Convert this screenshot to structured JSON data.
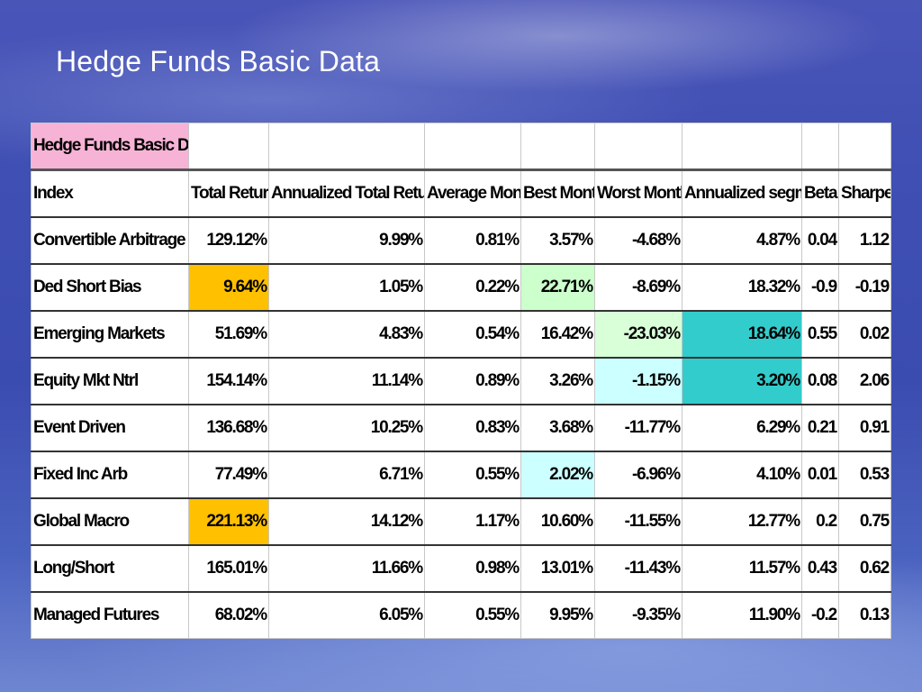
{
  "slide": {
    "title": "Hedge Funds Basic Data"
  },
  "table": {
    "tag": "Hedge Funds Basic Data",
    "headers": [
      "Index",
      "Total Return",
      "Annualized Total Return",
      "Average Month",
      "Best Month",
      "Worst Month",
      "Annualized segma",
      "Beta",
      "Sharpe"
    ],
    "rows": [
      [
        "Convertible Arbitrage",
        "129.12%",
        "9.99%",
        "0.81%",
        "3.57%",
        "-4.68%",
        "4.87%",
        "0.04",
        "1.12"
      ],
      [
        "Ded Short Bias",
        "9.64%",
        "1.05%",
        "0.22%",
        "22.71%",
        "-8.69%",
        "18.32%",
        "-0.9",
        "-0.19"
      ],
      [
        "Emerging Markets",
        "51.69%",
        "4.83%",
        "0.54%",
        "16.42%",
        "-23.03%",
        "18.64%",
        "0.55",
        "0.02"
      ],
      [
        "Equity Mkt Ntrl",
        "154.14%",
        "11.14%",
        "0.89%",
        "3.26%",
        "-1.15%",
        "3.20%",
        "0.08",
        "2.06"
      ],
      [
        "Event Driven",
        "136.68%",
        "10.25%",
        "0.83%",
        "3.68%",
        "-11.77%",
        "6.29%",
        "0.21",
        "0.91"
      ],
      [
        "Fixed Inc Arb",
        "77.49%",
        "6.71%",
        "0.55%",
        "2.02%",
        "-6.96%",
        "4.10%",
        "0.01",
        "0.53"
      ],
      [
        "Global Macro",
        "221.13%",
        "14.12%",
        "1.17%",
        "10.60%",
        "-11.55%",
        "12.77%",
        "0.2",
        "0.75"
      ],
      [
        "Long/Short",
        "165.01%",
        "11.66%",
        "0.98%",
        "13.01%",
        "-11.43%",
        "11.57%",
        "0.43",
        "0.62"
      ],
      [
        "Managed Futures",
        "68.02%",
        "6.05%",
        "0.55%",
        "9.95%",
        "-9.35%",
        "11.90%",
        "-0.2",
        "0.13"
      ]
    ],
    "highlights": {
      "orange": "#ffc000",
      "green": "#ccffcc",
      "teal": "#33cccc",
      "cyan": "#ccffff",
      "tag_pink": "#f7b3d6"
    }
  }
}
